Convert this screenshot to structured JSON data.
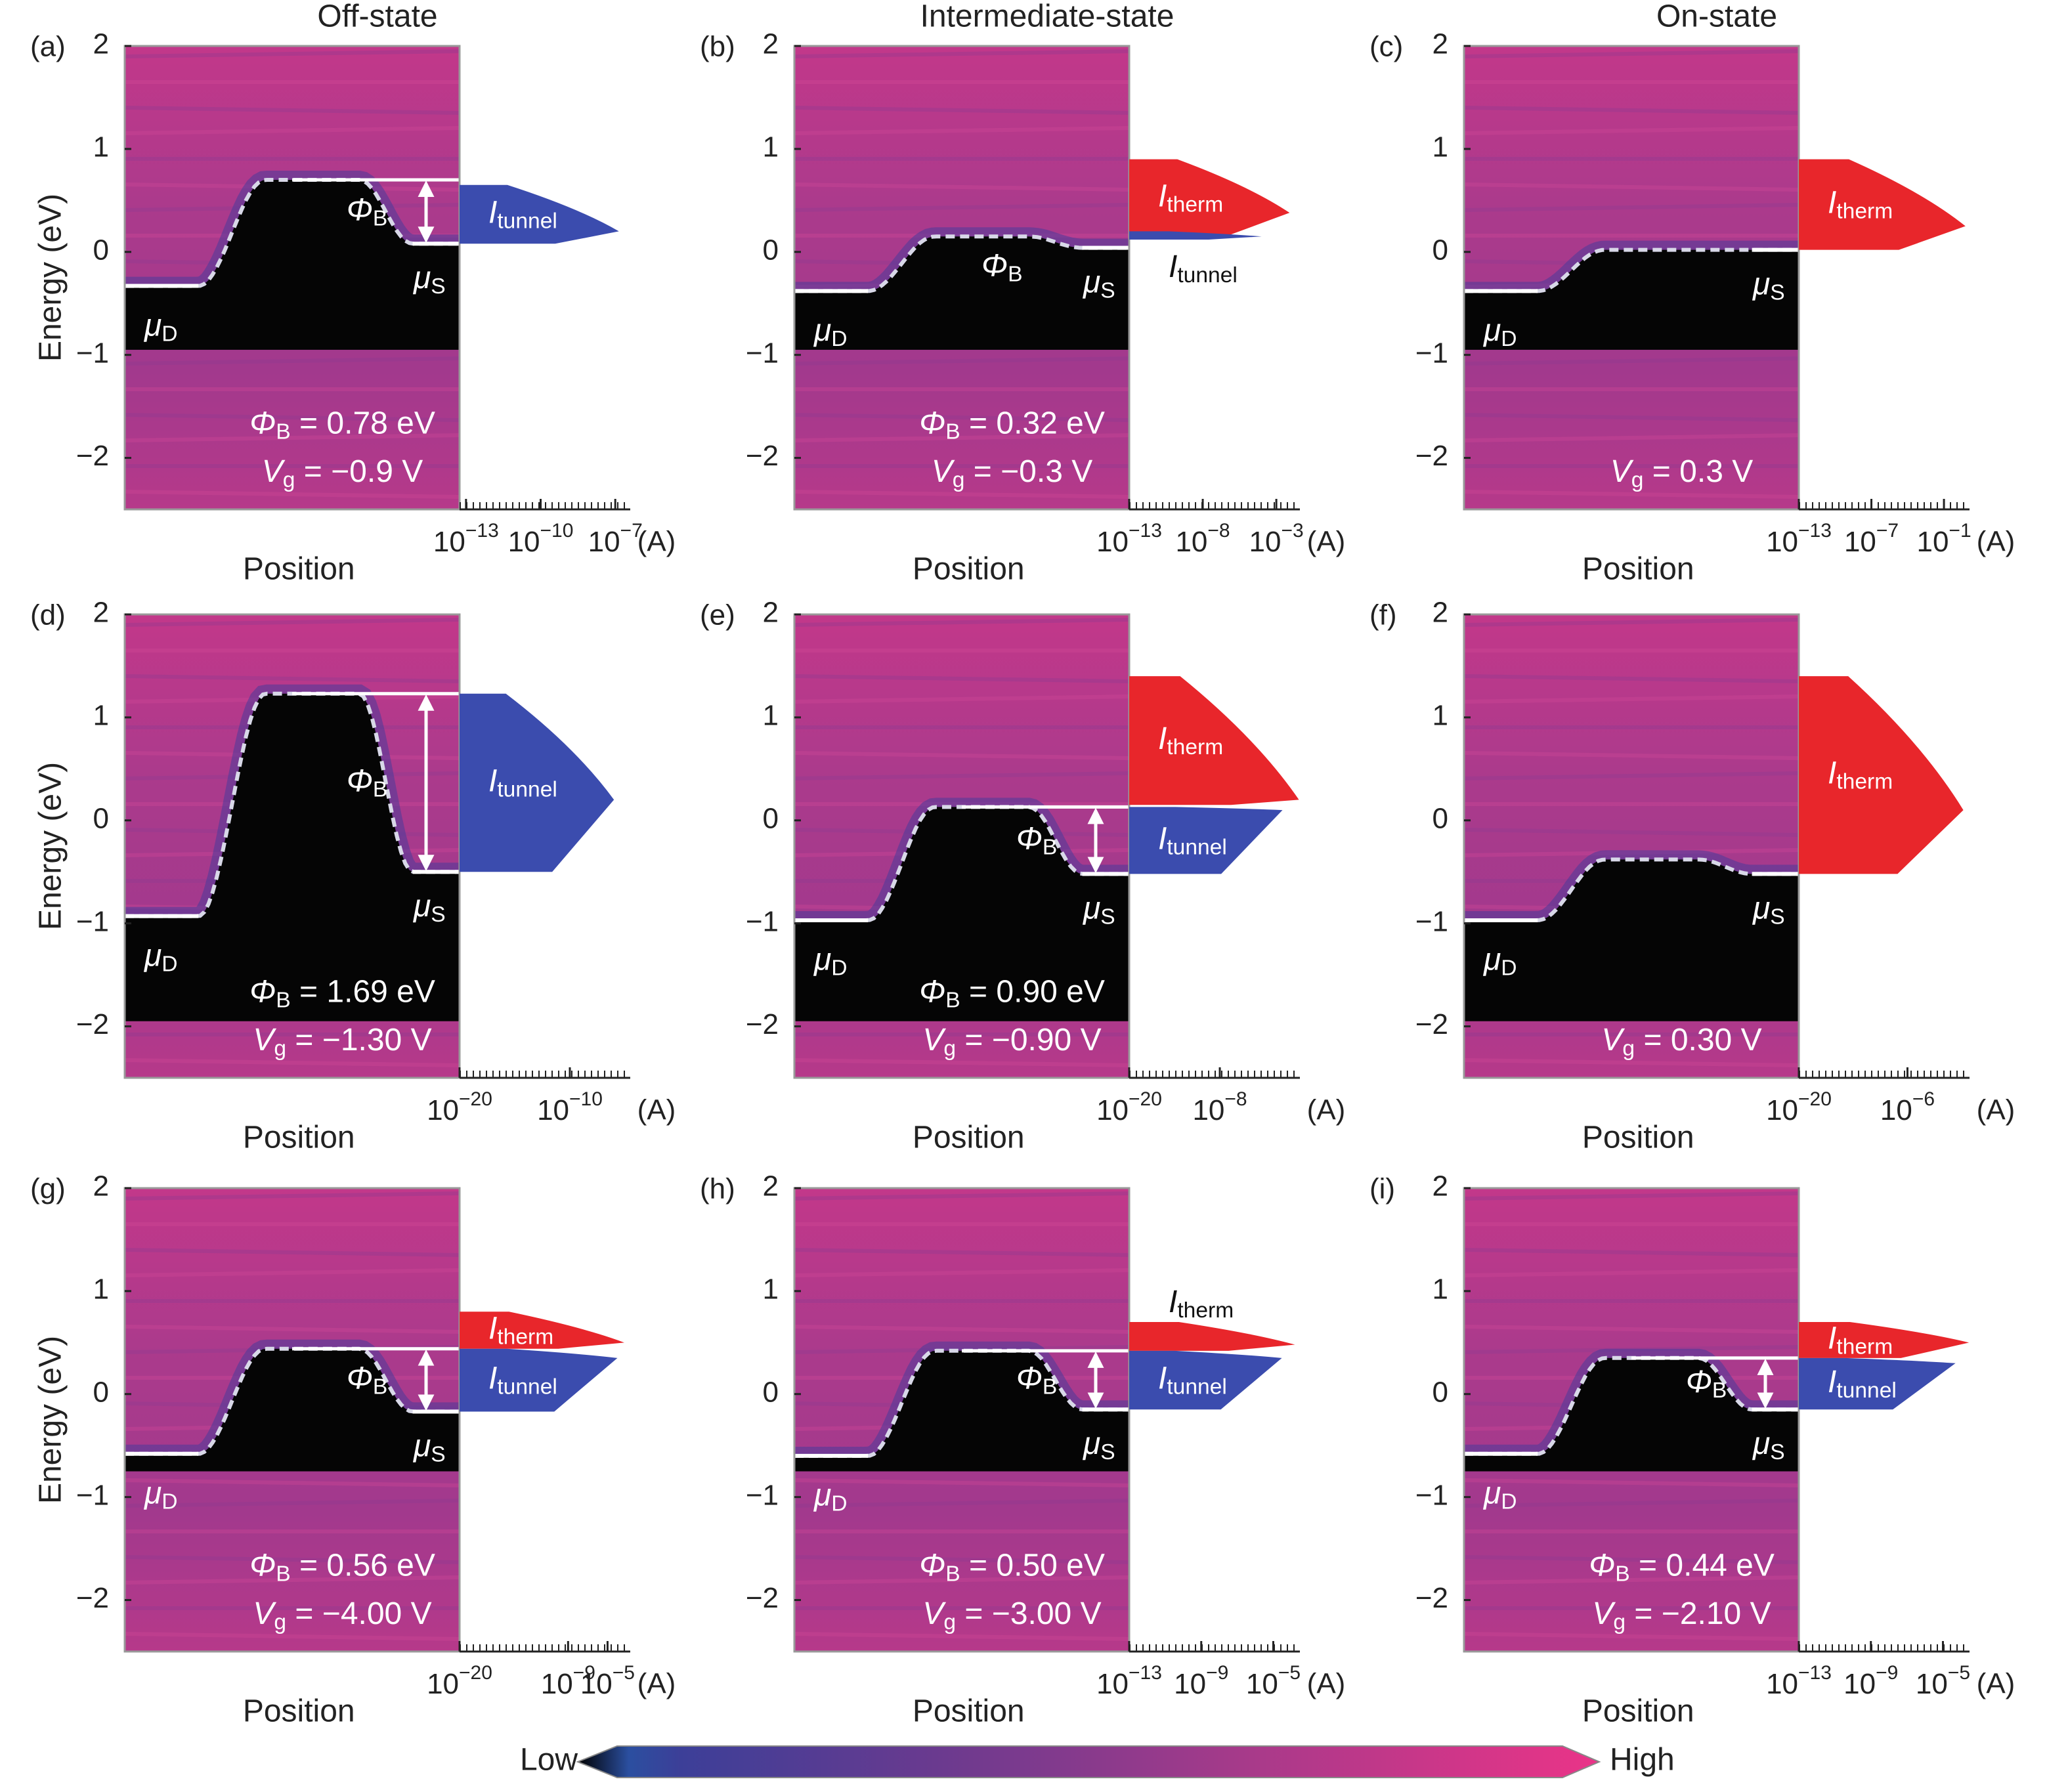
{
  "chart_data": [
    {
      "type": "heatmap",
      "panel_label": "(a)",
      "title": "Off-state",
      "ylabel": "Energy (eV)",
      "xlabel": "Position",
      "ylim": [
        -2.5,
        2
      ],
      "yticks": [
        {
          "value": -2,
          "label": "−2"
        },
        {
          "value": -1,
          "label": "−1"
        },
        0,
        1,
        2
      ],
      "xscale": "log",
      "xlim": [
        5.5e-14,
        4e-07
      ],
      "xticks": [
        {
          "value": 1e-13,
          "label": "10−13"
        },
        {
          "value": 1e-10,
          "label": "10−10"
        },
        {
          "value": 1e-07,
          "label": "10−7"
        }
      ],
      "x_unit": "(A)",
      "levels": {
        "mu_d": -0.33,
        "barrier_top": 0.7,
        "mu_s": 0.08,
        "gap_bottom": -0.95
      },
      "level_labels": {
        "mu_d": "μD",
        "mu_s": "μS",
        "barrier": "ΦB"
      },
      "barrier_arrow": true,
      "annotations": [
        "ΦB = 0.78 eV",
        "Vg = −0.9 V"
      ],
      "series": [
        {
          "name": "Itunnel",
          "color": "#3b4cae",
          "energy": [
            0.08,
            0.65
          ],
          "peak_energy": 0.2,
          "peak_current": 1.4e-07
        }
      ]
    },
    {
      "type": "heatmap",
      "panel_label": "(b)",
      "title": "Intermediate-state",
      "xlabel": "Position",
      "ylim": [
        -2.5,
        2
      ],
      "yticks": [
        {
          "value": -2,
          "label": "−2"
        },
        {
          "value": -1,
          "label": "−1"
        },
        0,
        1,
        2
      ],
      "xscale": "log",
      "xlim": [
        1e-13,
        0.04
      ],
      "xticks": [
        {
          "value": 1e-13,
          "label": "10−13"
        },
        {
          "value": 1e-08,
          "label": "10−8"
        },
        {
          "value": 0.001,
          "label": "10−3"
        }
      ],
      "x_unit": "(A)",
      "levels": {
        "mu_d": -0.38,
        "barrier_top": 0.15,
        "mu_s": 0.04,
        "gap_bottom": -0.95
      },
      "level_labels": {
        "mu_d": "μD",
        "mu_s": "μS",
        "barrier": "ΦB"
      },
      "barrier_arrow": false,
      "annotations": [
        "ΦB = 0.32 eV",
        "Vg = −0.3 V"
      ],
      "series": [
        {
          "name": "Itherm",
          "color": "#e8262b",
          "energy": [
            0.15,
            0.9
          ],
          "peak_energy": 0.38,
          "peak_current": 0.008
        },
        {
          "name": "Itunnel",
          "color": "#3b4cae",
          "energy": [
            0.12,
            0.2
          ],
          "peak_energy": 0.15,
          "peak_current": 0.0001
        }
      ]
    },
    {
      "type": "heatmap",
      "panel_label": "(c)",
      "title": "On-state",
      "xlabel": "Position",
      "ylim": [
        -2.5,
        2
      ],
      "yticks": [
        {
          "value": -2,
          "label": "−2"
        },
        {
          "value": -1,
          "label": "−1"
        },
        0,
        1,
        2
      ],
      "xscale": "log",
      "xlim": [
        1e-13,
        13
      ],
      "xticks": [
        {
          "value": 1e-13,
          "label": "10−13"
        },
        {
          "value": 1e-07,
          "label": "10−7"
        },
        {
          "value": 0.1,
          "label": "10−1"
        }
      ],
      "x_unit": "(A)",
      "levels": {
        "mu_d": -0.38,
        "barrier_top": 0.02,
        "mu_s": 0.02,
        "gap_bottom": -0.95
      },
      "level_labels": {
        "mu_d": "μD",
        "mu_s": "μS"
      },
      "barrier_arrow": false,
      "annotations": [
        "Vg = 0.3 V"
      ],
      "series": [
        {
          "name": "Itherm",
          "color": "#e8262b",
          "energy": [
            0.02,
            0.9
          ],
          "peak_energy": 0.25,
          "peak_current": 6
        }
      ]
    },
    {
      "type": "heatmap",
      "panel_label": "(d)",
      "ylabel": "Energy (eV)",
      "xlabel": "Position",
      "ylim": [
        -2.5,
        2
      ],
      "yticks": [
        {
          "value": -2,
          "label": "−2"
        },
        {
          "value": -1,
          "label": "−1"
        },
        0,
        1,
        2
      ],
      "xscale": "log",
      "xlim": [
        1e-20,
        3e-05
      ],
      "xticks": [
        {
          "value": 1e-20,
          "label": "10−20"
        },
        {
          "value": 1e-10,
          "label": "10−10"
        }
      ],
      "x_unit": "(A)",
      "levels": {
        "mu_d": -0.93,
        "barrier_top": 1.23,
        "mu_s": -0.5,
        "gap_bottom": -1.95
      },
      "level_labels": {
        "mu_d": "μD",
        "mu_s": "μS",
        "barrier": "ΦB"
      },
      "barrier_arrow": true,
      "annotations": [
        "ΦB = 1.69 eV",
        "Vg = −1.30 V"
      ],
      "series": [
        {
          "name": "Itunnel",
          "color": "#3b4cae",
          "energy": [
            -0.5,
            1.23
          ],
          "peak_energy": 0.2,
          "peak_current": 1e-06
        }
      ]
    },
    {
      "type": "heatmap",
      "panel_label": "(e)",
      "xlabel": "Position",
      "ylim": [
        -2.5,
        2
      ],
      "yticks": [
        {
          "value": -2,
          "label": "−2"
        },
        {
          "value": -1,
          "label": "−1"
        },
        0,
        1,
        2
      ],
      "xscale": "log",
      "xlim": [
        1e-20,
        400.0
      ],
      "xticks": [
        {
          "value": 1e-20,
          "label": "10−20"
        },
        {
          "value": 1e-08,
          "label": "10−8"
        }
      ],
      "x_unit": "(A)",
      "levels": {
        "mu_d": -0.97,
        "barrier_top": 0.13,
        "mu_s": -0.52,
        "gap_bottom": -1.95
      },
      "level_labels": {
        "mu_d": "μD",
        "mu_s": "μS",
        "barrier": "ΦB"
      },
      "barrier_arrow": true,
      "annotations": [
        "ΦB = 0.90 eV",
        "Vg = −0.90 V"
      ],
      "series": [
        {
          "name": "Itherm",
          "color": "#e8262b",
          "energy": [
            0.15,
            1.4
          ],
          "peak_energy": 0.2,
          "peak_current": 300
        },
        {
          "name": "Itunnel",
          "color": "#3b4cae",
          "energy": [
            -0.52,
            0.13
          ],
          "peak_energy": 0.1,
          "peak_current": 2
        }
      ]
    },
    {
      "type": "heatmap",
      "panel_label": "(f)",
      "xlabel": "Position",
      "ylim": [
        -2.5,
        2
      ],
      "yticks": [
        {
          "value": -2,
          "label": "−2"
        },
        {
          "value": -1,
          "label": "−1"
        },
        0,
        1,
        2
      ],
      "xscale": "log",
      "xlim": [
        1e-20,
        100.0
      ],
      "xticks": [
        {
          "value": 1e-20,
          "label": "10−20"
        },
        {
          "value": 1e-06,
          "label": "10−6"
        }
      ],
      "x_unit": "(A)",
      "levels": {
        "mu_d": -0.97,
        "barrier_top": -0.38,
        "mu_s": -0.52,
        "gap_bottom": -1.95
      },
      "level_labels": {
        "mu_d": "μD",
        "mu_s": "μS"
      },
      "barrier_arrow": false,
      "annotations": [
        "Vg = 0.30 V"
      ],
      "series": [
        {
          "name": "Itherm",
          "color": "#e8262b",
          "energy": [
            -0.52,
            1.4
          ],
          "peak_energy": 0.1,
          "peak_current": 16
        }
      ]
    },
    {
      "type": "heatmap",
      "panel_label": "(g)",
      "ylabel": "Energy (eV)",
      "xlabel": "Position",
      "ylim": [
        -2.5,
        2
      ],
      "yticks": [
        {
          "value": -2,
          "label": "−2"
        },
        {
          "value": -1,
          "label": "−1"
        },
        0,
        1,
        2
      ],
      "xscale": "log",
      "xlim": [
        1e-20,
        0.002
      ],
      "xticks": [
        {
          "value": 1e-20,
          "label": "10−20"
        },
        {
          "value": 1e-09,
          "label": "10−9"
        },
        {
          "value": 1e-05,
          "label": "10−5"
        }
      ],
      "x_unit": "(A)",
      "levels": {
        "mu_d": -0.58,
        "barrier_top": 0.44,
        "mu_s": -0.17,
        "gap_bottom": -0.75
      },
      "level_labels": {
        "mu_d": "μD",
        "mu_s": "μS",
        "barrier": "ΦB"
      },
      "barrier_arrow": true,
      "annotations": [
        "ΦB = 0.56 eV",
        "Vg = −4.00 V"
      ],
      "series": [
        {
          "name": "Itherm",
          "color": "#e8262b",
          "energy": [
            0.44,
            0.8
          ],
          "peak_energy": 0.5,
          "peak_current": 0.0005
        },
        {
          "name": "Itunnel",
          "color": "#3b4cae",
          "energy": [
            -0.17,
            0.44
          ],
          "peak_energy": 0.35,
          "peak_current": 0.0001
        }
      ]
    },
    {
      "type": "heatmap",
      "panel_label": "(h)",
      "xlabel": "Position",
      "ylim": [
        -2.5,
        2
      ],
      "yticks": [
        {
          "value": -2,
          "label": "−2"
        },
        {
          "value": -1,
          "label": "−1"
        },
        0,
        1,
        2
      ],
      "xscale": "log",
      "xlim": [
        1e-13,
        0.0003
      ],
      "xticks": [
        {
          "value": 1e-13,
          "label": "10−13"
        },
        {
          "value": 1e-09,
          "label": "10−9"
        },
        {
          "value": 1e-05,
          "label": "10−5"
        }
      ],
      "x_unit": "(A)",
      "levels": {
        "mu_d": -0.6,
        "barrier_top": 0.42,
        "mu_s": -0.15,
        "gap_bottom": -0.75
      },
      "level_labels": {
        "mu_d": "μD",
        "mu_s": "μS",
        "barrier": "ΦB"
      },
      "barrier_arrow": true,
      "annotations": [
        "ΦB = 0.50 eV",
        "Vg = −3.00 V"
      ],
      "series": [
        {
          "name": "Itherm",
          "color": "#e8262b",
          "energy": [
            0.42,
            0.7
          ],
          "peak_energy": 0.48,
          "peak_current": 0.00016
        },
        {
          "name": "Itunnel",
          "color": "#3b4cae",
          "energy": [
            -0.15,
            0.42
          ],
          "peak_energy": 0.35,
          "peak_current": 3e-05
        }
      ]
    },
    {
      "type": "heatmap",
      "panel_label": "(i)",
      "xlabel": "Position",
      "ylim": [
        -2.5,
        2
      ],
      "yticks": [
        {
          "value": -2,
          "label": "−2"
        },
        {
          "value": -1,
          "label": "−1"
        },
        0,
        1,
        2
      ],
      "xscale": "log",
      "xlim": [
        1e-13,
        0.0003
      ],
      "xticks": [
        {
          "value": 1e-13,
          "label": "10−13"
        },
        {
          "value": 1e-09,
          "label": "10−9"
        },
        {
          "value": 1e-05,
          "label": "10−5"
        }
      ],
      "x_unit": "(A)",
      "levels": {
        "mu_d": -0.58,
        "barrier_top": 0.35,
        "mu_s": -0.15,
        "gap_bottom": -0.75
      },
      "level_labels": {
        "mu_d": "μD",
        "mu_s": "μS",
        "barrier": "ΦB"
      },
      "barrier_arrow": true,
      "annotations": [
        "ΦB = 0.44 eV",
        "Vg = −2.10 V"
      ],
      "series": [
        {
          "name": "Itherm",
          "color": "#e8262b",
          "energy": [
            0.35,
            0.7
          ],
          "peak_energy": 0.5,
          "peak_current": 0.00028
        },
        {
          "name": "Itunnel",
          "color": "#3b4cae",
          "energy": [
            -0.15,
            0.35
          ],
          "peak_energy": 0.3,
          "peak_current": 5e-05
        }
      ]
    }
  ],
  "colorbar": {
    "low": "Low",
    "high": "High"
  }
}
